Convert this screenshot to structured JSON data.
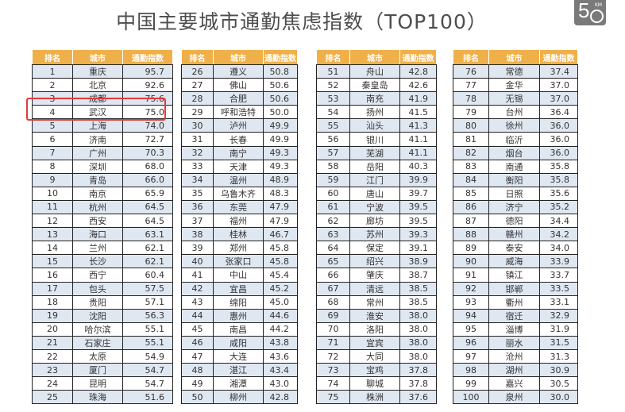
{
  "title": "中国主要城市通勤焦虑指数（TOP100）",
  "logo": {
    "text": "5",
    "sub": "KM"
  },
  "headers": [
    "排名",
    "城市",
    "通勤指数"
  ],
  "colors": {
    "header": "#f0b049",
    "alt_row": "#dfe7f1",
    "highlight": "#e43a3a"
  },
  "highlighted_rank": "4",
  "tables": [
    {
      "rows": [
        [
          "1",
          "重庆",
          "95.7"
        ],
        [
          "2",
          "北京",
          "92.6"
        ],
        [
          "3",
          "成都",
          "75.6"
        ],
        [
          "4",
          "武汉",
          "75.0"
        ],
        [
          "5",
          "上海",
          "74.0"
        ],
        [
          "6",
          "济南",
          "72.7"
        ],
        [
          "7",
          "广州",
          "70.3"
        ],
        [
          "8",
          "深圳",
          "68.0"
        ],
        [
          "9",
          "青岛",
          "66.0"
        ],
        [
          "10",
          "南京",
          "65.9"
        ],
        [
          "11",
          "杭州",
          "64.5"
        ],
        [
          "12",
          "西安",
          "64.5"
        ],
        [
          "13",
          "海口",
          "63.1"
        ],
        [
          "14",
          "兰州",
          "62.1"
        ],
        [
          "15",
          "长沙",
          "62.1"
        ],
        [
          "16",
          "西宁",
          "60.4"
        ],
        [
          "17",
          "包头",
          "57.5"
        ],
        [
          "18",
          "贵阳",
          "57.1"
        ],
        [
          "19",
          "沈阳",
          "56.3"
        ],
        [
          "20",
          "哈尔滨",
          "55.1"
        ],
        [
          "21",
          "石家庄",
          "55.1"
        ],
        [
          "22",
          "太原",
          "54.9"
        ],
        [
          "23",
          "厦门",
          "54.7"
        ],
        [
          "24",
          "昆明",
          "54.7"
        ],
        [
          "25",
          "珠海",
          "51.6"
        ]
      ]
    },
    {
      "rows": [
        [
          "26",
          "遵义",
          "50.8"
        ],
        [
          "27",
          "佛山",
          "50.6"
        ],
        [
          "28",
          "合肥",
          "50.6"
        ],
        [
          "29",
          "呼和浩特",
          "50.0"
        ],
        [
          "30",
          "泸州",
          "49.9"
        ],
        [
          "31",
          "长春",
          "49.9"
        ],
        [
          "32",
          "南宁",
          "49.3"
        ],
        [
          "33",
          "天津",
          "49.3"
        ],
        [
          "34",
          "温州",
          "48.9"
        ],
        [
          "35",
          "乌鲁木齐",
          "48.3"
        ],
        [
          "36",
          "东莞",
          "47.9"
        ],
        [
          "37",
          "福州",
          "47.9"
        ],
        [
          "38",
          "桂林",
          "46.7"
        ],
        [
          "39",
          "郑州",
          "45.8"
        ],
        [
          "40",
          "张家口",
          "45.8"
        ],
        [
          "41",
          "中山",
          "45.4"
        ],
        [
          "42",
          "宜昌",
          "45.2"
        ],
        [
          "43",
          "绵阳",
          "45.0"
        ],
        [
          "44",
          "惠州",
          "44.6"
        ],
        [
          "45",
          "南昌",
          "44.2"
        ],
        [
          "46",
          "咸阳",
          "43.8"
        ],
        [
          "47",
          "大连",
          "43.6"
        ],
        [
          "48",
          "湛江",
          "43.4"
        ],
        [
          "49",
          "湘潭",
          "43.0"
        ],
        [
          "50",
          "柳州",
          "42.8"
        ]
      ]
    },
    {
      "rows": [
        [
          "51",
          "舟山",
          "42.8"
        ],
        [
          "52",
          "秦皇岛",
          "42.6"
        ],
        [
          "53",
          "南充",
          "41.9"
        ],
        [
          "54",
          "扬州",
          "41.5"
        ],
        [
          "55",
          "汕头",
          "41.3"
        ],
        [
          "56",
          "银川",
          "41.1"
        ],
        [
          "57",
          "芜湖",
          "41.1"
        ],
        [
          "58",
          "岳阳",
          "40.3"
        ],
        [
          "59",
          "江门",
          "39.9"
        ],
        [
          "60",
          "唐山",
          "39.7"
        ],
        [
          "61",
          "宁波",
          "39.5"
        ],
        [
          "62",
          "廊坊",
          "39.5"
        ],
        [
          "63",
          "苏州",
          "39.3"
        ],
        [
          "64",
          "保定",
          "39.1"
        ],
        [
          "65",
          "绍兴",
          "38.9"
        ],
        [
          "66",
          "肇庆",
          "38.7"
        ],
        [
          "67",
          "清远",
          "38.5"
        ],
        [
          "68",
          "常州",
          "38.5"
        ],
        [
          "69",
          "淮安",
          "38.0"
        ],
        [
          "70",
          "洛阳",
          "38.0"
        ],
        [
          "71",
          "宜宾",
          "38.0"
        ],
        [
          "72",
          "大同",
          "38.0"
        ],
        [
          "73",
          "宝鸡",
          "37.8"
        ],
        [
          "74",
          "聊城",
          "37.8"
        ],
        [
          "75",
          "株洲",
          "37.6"
        ]
      ]
    },
    {
      "rows": [
        [
          "76",
          "常德",
          "37.4"
        ],
        [
          "77",
          "金华",
          "37.0"
        ],
        [
          "78",
          "无锡",
          "37.0"
        ],
        [
          "79",
          "台州",
          "36.4"
        ],
        [
          "80",
          "徐州",
          "36.0"
        ],
        [
          "81",
          "临沂",
          "36.0"
        ],
        [
          "82",
          "烟台",
          "36.0"
        ],
        [
          "83",
          "南通",
          "35.8"
        ],
        [
          "84",
          "衡阳",
          "35.8"
        ],
        [
          "85",
          "日照",
          "35.6"
        ],
        [
          "86",
          "济宁",
          "35.2"
        ],
        [
          "87",
          "德阳",
          "34.4"
        ],
        [
          "88",
          "赣州",
          "34.2"
        ],
        [
          "89",
          "泰安",
          "34.0"
        ],
        [
          "90",
          "威海",
          "33.9"
        ],
        [
          "91",
          "镇江",
          "33.7"
        ],
        [
          "92",
          "邯郸",
          "33.5"
        ],
        [
          "93",
          "衢州",
          "33.1"
        ],
        [
          "94",
          "宿迁",
          "32.9"
        ],
        [
          "95",
          "淄博",
          "31.9"
        ],
        [
          "96",
          "丽水",
          "31.5"
        ],
        [
          "97",
          "沧州",
          "31.3"
        ],
        [
          "98",
          "湖州",
          "30.9"
        ],
        [
          "99",
          "嘉兴",
          "30.5"
        ],
        [
          "100",
          "泉州",
          "30.0"
        ]
      ]
    }
  ]
}
